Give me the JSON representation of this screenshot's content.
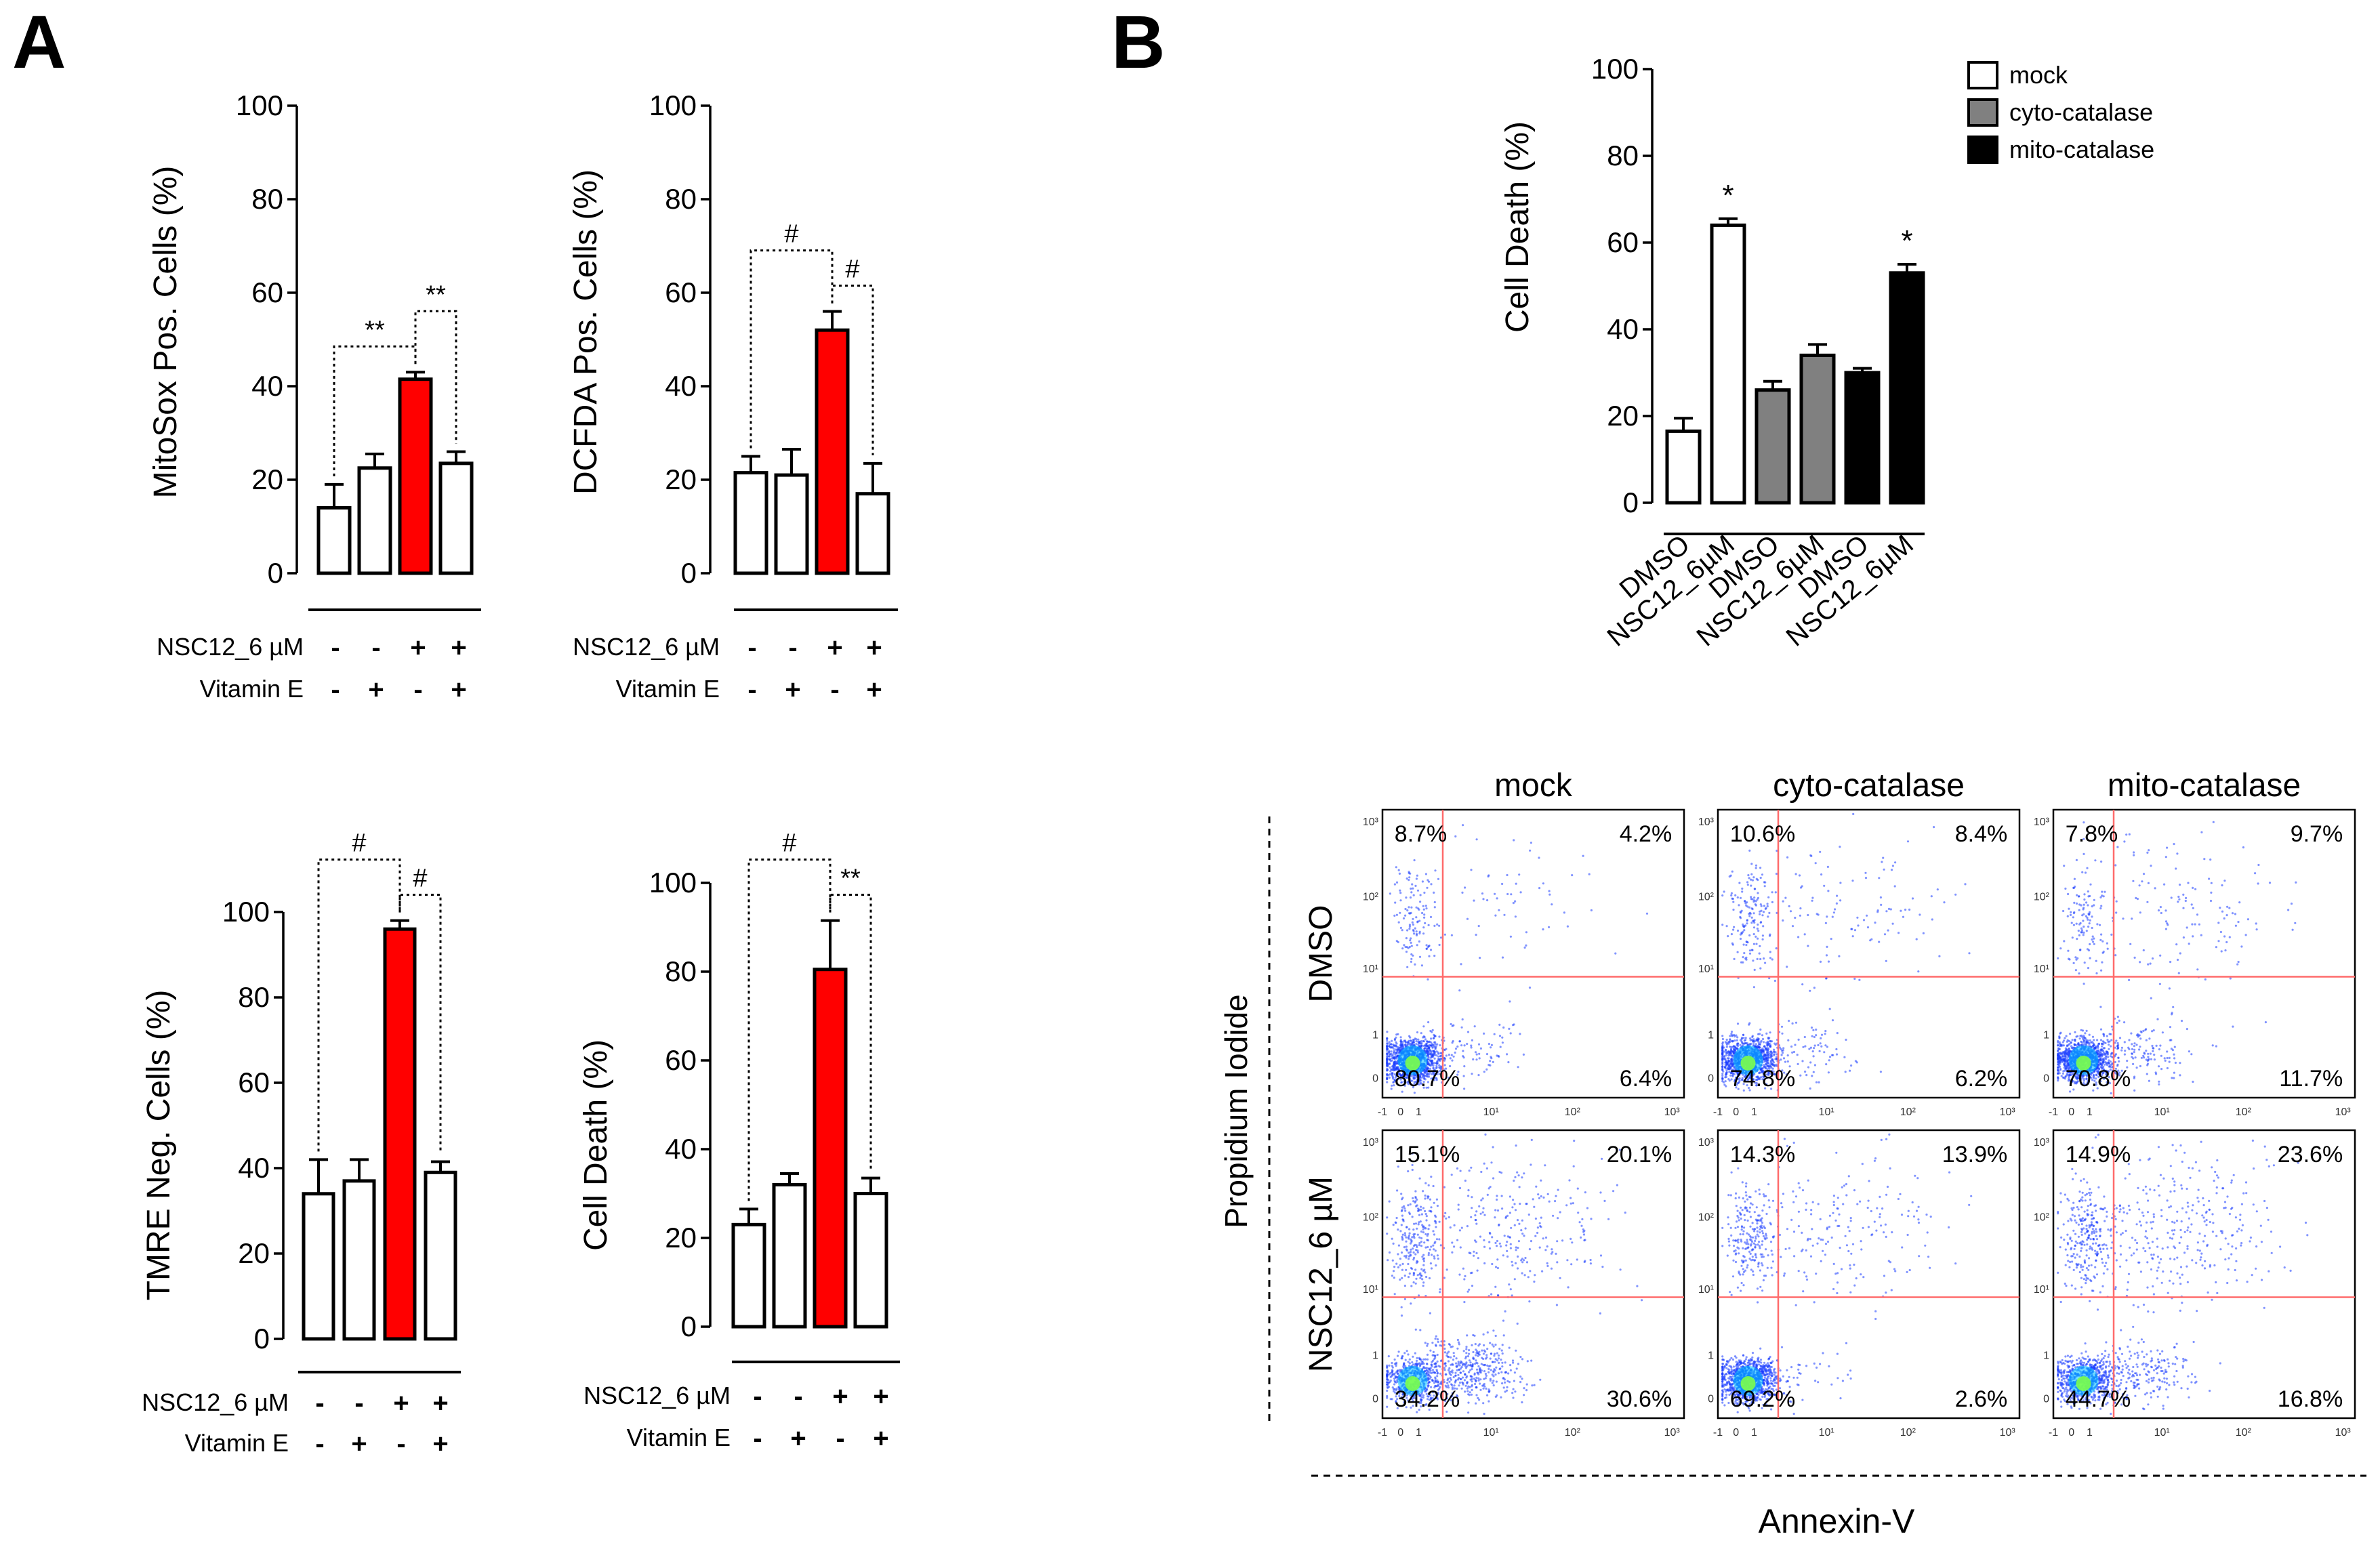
{
  "panels": {
    "A": "A",
    "B": "B"
  },
  "colors": {
    "white": "#ffffff",
    "red": "#ff0000",
    "gray": "#808080",
    "black": "#000000",
    "gate": "#ff6b6b",
    "dots": "#1a3dff"
  },
  "chart_data": [
    {
      "id": "A1",
      "type": "bar",
      "ylabel": "MitoSox Pos. Cells (%)",
      "ylim": [
        0,
        100
      ],
      "yticks": [
        0,
        20,
        40,
        60,
        80,
        100
      ],
      "values": [
        14,
        22.5,
        41.5,
        23.5
      ],
      "errors": [
        5,
        3,
        1.5,
        2.5
      ],
      "colors": [
        "white",
        "white",
        "red",
        "white"
      ],
      "treatments": [
        {
          "label": "NSC12_6 µM",
          "signs": [
            "-",
            "-",
            "+",
            "+"
          ]
        },
        {
          "label": "Vitamin E",
          "signs": [
            "-",
            "+",
            "-",
            "+"
          ]
        }
      ],
      "annotations": [
        {
          "from": 0,
          "to": 2,
          "label": "**",
          "level": 0
        },
        {
          "from": 2,
          "to": 3,
          "label": "**",
          "level": 1
        }
      ]
    },
    {
      "id": "A2",
      "type": "bar",
      "ylabel": "DCFDA Pos. Cells (%)",
      "ylim": [
        0,
        100
      ],
      "yticks": [
        0,
        20,
        40,
        60,
        80,
        100
      ],
      "values": [
        21.5,
        21,
        52,
        17
      ],
      "errors": [
        3.5,
        5.5,
        4,
        6.5
      ],
      "colors": [
        "white",
        "white",
        "red",
        "white"
      ],
      "treatments": [
        {
          "label": "NSC12_6 µM",
          "signs": [
            "-",
            "-",
            "+",
            "+"
          ]
        },
        {
          "label": "Vitamin E",
          "signs": [
            "-",
            "+",
            "-",
            "+"
          ]
        }
      ],
      "annotations": [
        {
          "from": 0,
          "to": 2,
          "label": "#",
          "level": 1
        },
        {
          "from": 2,
          "to": 3,
          "label": "#",
          "level": 0
        }
      ]
    },
    {
      "id": "A3",
      "type": "bar",
      "ylabel": "TMRE Neg. Cells (%)",
      "ylim": [
        0,
        100
      ],
      "yticks": [
        0,
        20,
        40,
        60,
        80,
        100
      ],
      "values": [
        34,
        37,
        96,
        39
      ],
      "errors": [
        8,
        5,
        2,
        2.5
      ],
      "colors": [
        "white",
        "white",
        "red",
        "white"
      ],
      "treatments": [
        {
          "label": "NSC12_6 µM",
          "signs": [
            "-",
            "-",
            "+",
            "+"
          ]
        },
        {
          "label": "Vitamin E",
          "signs": [
            "-",
            "+",
            "-",
            "+"
          ]
        }
      ],
      "annotations": [
        {
          "from": 0,
          "to": 2,
          "label": "#",
          "level": 1
        },
        {
          "from": 2,
          "to": 3,
          "label": "#",
          "level": 0
        }
      ]
    },
    {
      "id": "A4",
      "type": "bar",
      "ylabel": "Cell Death (%)",
      "ylim": [
        0,
        100
      ],
      "yticks": [
        0,
        20,
        40,
        60,
        80,
        100
      ],
      "values": [
        23,
        32,
        80.5,
        30
      ],
      "errors": [
        3.5,
        2.5,
        11,
        3.5
      ],
      "colors": [
        "white",
        "white",
        "red",
        "white"
      ],
      "treatments": [
        {
          "label": "NSC12_6 µM",
          "signs": [
            "-",
            "-",
            "+",
            "+"
          ]
        },
        {
          "label": "Vitamin E",
          "signs": [
            "-",
            "+",
            "-",
            "+"
          ]
        }
      ],
      "annotations": [
        {
          "from": 0,
          "to": 2,
          "label": "#",
          "level": 1
        },
        {
          "from": 2,
          "to": 3,
          "label": "**",
          "level": 0
        }
      ]
    },
    {
      "id": "B1",
      "type": "bar",
      "ylabel": "Cell Death (%)",
      "ylim": [
        0,
        100
      ],
      "yticks": [
        0,
        20,
        40,
        60,
        80,
        100
      ],
      "categories": [
        "DMSO",
        "NSC12_6µM",
        "DMSO",
        "NSC12_6µM",
        "DMSO",
        "NSC12_6µM"
      ],
      "values": [
        16.5,
        64,
        26,
        34,
        30,
        53
      ],
      "errors": [
        3,
        1.5,
        2,
        2.5,
        1,
        2
      ],
      "colors": [
        "white",
        "white",
        "gray",
        "gray",
        "black",
        "black"
      ],
      "significance": [
        "",
        "*",
        "",
        "",
        "",
        "*"
      ],
      "legend": [
        {
          "label": "mock",
          "color": "white"
        },
        {
          "label": "cyto-catalase",
          "color": "gray"
        },
        {
          "label": "mito-catalase",
          "color": "black"
        }
      ]
    },
    {
      "id": "B2",
      "type": "scatter",
      "title_columns": [
        "mock",
        "cyto-catalase",
        "mito-catalase"
      ],
      "row_labels": [
        "DMSO",
        "NSC12_6 µM"
      ],
      "xlabel": "Annexin-V",
      "ylabel": "Propidium Iodide",
      "x_ticks": [
        "-1",
        "0",
        "1",
        "10¹",
        "10²",
        "10³"
      ],
      "y_ticks": [
        "0",
        "1",
        "10¹",
        "10²",
        "10³"
      ],
      "quadrants": [
        [
          {
            "UL": "8.7%",
            "UR": "4.2%",
            "LL": "80.7%",
            "LR": "6.4%"
          },
          {
            "UL": "10.6%",
            "UR": "8.4%",
            "LL": "74.8%",
            "LR": "6.2%"
          },
          {
            "UL": "7.8%",
            "UR": "9.7%",
            "LL": "70.8%",
            "LR": "11.7%"
          }
        ],
        [
          {
            "UL": "15.1%",
            "UR": "20.1%",
            "LL": "34.2%",
            "LR": "30.6%"
          },
          {
            "UL": "14.3%",
            "UR": "13.9%",
            "LL": "69.2%",
            "LR": "2.6%"
          },
          {
            "UL": "14.9%",
            "UR": "23.6%",
            "LL": "44.7%",
            "LR": "16.8%"
          }
        ]
      ]
    }
  ]
}
